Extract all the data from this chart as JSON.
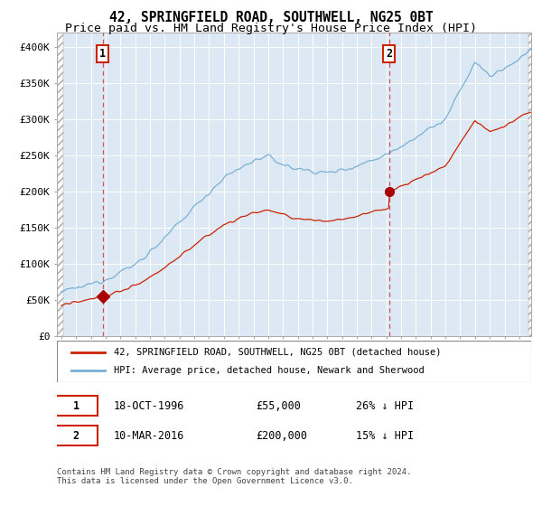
{
  "title": "42, SPRINGFIELD ROAD, SOUTHWELL, NG25 0BT",
  "subtitle": "Price paid vs. HM Land Registry's House Price Index (HPI)",
  "ylim": [
    0,
    420000
  ],
  "yticks": [
    0,
    50000,
    100000,
    150000,
    200000,
    250000,
    300000,
    350000,
    400000
  ],
  "ytick_labels": [
    "£0",
    "£50K",
    "£100K",
    "£150K",
    "£200K",
    "£250K",
    "£300K",
    "£350K",
    "£400K"
  ],
  "xlim_start": 1993.7,
  "xlim_end": 2025.8,
  "hpi_color": "#7ab0d4",
  "price_color": "#cc2200",
  "marker_color": "#aa0000",
  "dashed_line_color": "#cc4444",
  "bg_color": "#dce9f5",
  "legend_label_price": "42, SPRINGFIELD ROAD, SOUTHWELL, NG25 0BT (detached house)",
  "legend_label_hpi": "HPI: Average price, detached house, Newark and Sherwood",
  "transaction1_date": 1996.8,
  "transaction1_price": 55000,
  "transaction2_date": 2016.19,
  "transaction2_price": 200000,
  "footer": "Contains HM Land Registry data © Crown copyright and database right 2024.\nThis data is licensed under the Open Government Licence v3.0.",
  "title_fontsize": 10.5,
  "subtitle_fontsize": 9.5
}
